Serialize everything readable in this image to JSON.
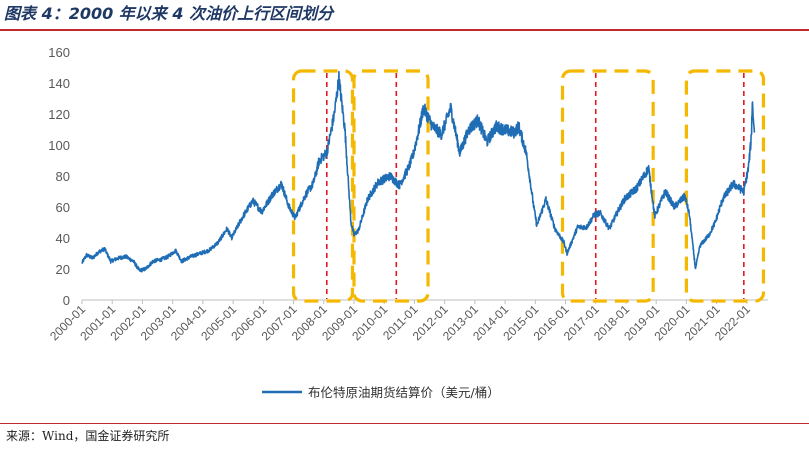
{
  "figure": {
    "title": "图表 4：2000 年以来 4 次油价上行区间划分",
    "source": "来源：Wind，国金证券研究所"
  },
  "chart_data": {
    "type": "line",
    "title": "",
    "xlabel": "",
    "ylabel": "",
    "ylim": [
      0,
      160
    ],
    "yticks": [
      0,
      20,
      40,
      60,
      80,
      100,
      120,
      140,
      160
    ],
    "xlim": [
      2000.0,
      2022.7
    ],
    "xticks": [
      "2000-01",
      "2001-01",
      "2002-01",
      "2003-01",
      "2004-01",
      "2005-01",
      "2006-01",
      "2007-01",
      "2008-01",
      "2009-01",
      "2010-01",
      "2011-01",
      "2012-01",
      "2013-01",
      "2014-01",
      "2015-01",
      "2016-01",
      "2017-01",
      "2018-01",
      "2019-01",
      "2020-01",
      "2021-01",
      "2022-01"
    ],
    "grid": false,
    "legend_position": "bottom",
    "series": [
      {
        "name": "布伦特原油期货结算价（美元/桶）",
        "color": "#1f6db5",
        "points": [
          [
            2000.0,
            24
          ],
          [
            2000.15,
            29
          ],
          [
            2000.35,
            27
          ],
          [
            2000.55,
            31
          ],
          [
            2000.75,
            33
          ],
          [
            2000.95,
            25
          ],
          [
            2001.2,
            27
          ],
          [
            2001.45,
            28
          ],
          [
            2001.7,
            25
          ],
          [
            2001.9,
            19
          ],
          [
            2002.1,
            20
          ],
          [
            2002.35,
            25
          ],
          [
            2002.6,
            26
          ],
          [
            2002.85,
            28
          ],
          [
            2003.1,
            32
          ],
          [
            2003.3,
            25
          ],
          [
            2003.6,
            28
          ],
          [
            2003.9,
            30
          ],
          [
            2004.2,
            32
          ],
          [
            2004.5,
            37
          ],
          [
            2004.8,
            46
          ],
          [
            2004.95,
            40
          ],
          [
            2005.3,
            53
          ],
          [
            2005.65,
            64
          ],
          [
            2005.95,
            57
          ],
          [
            2006.3,
            68
          ],
          [
            2006.6,
            75
          ],
          [
            2006.85,
            60
          ],
          [
            2007.05,
            53
          ],
          [
            2007.4,
            68
          ],
          [
            2007.65,
            75
          ],
          [
            2007.85,
            90
          ],
          [
            2008.1,
            95
          ],
          [
            2008.35,
            120
          ],
          [
            2008.5,
            143
          ],
          [
            2008.7,
            110
          ],
          [
            2008.9,
            50
          ],
          [
            2009.0,
            42
          ],
          [
            2009.15,
            45
          ],
          [
            2009.45,
            65
          ],
          [
            2009.8,
            76
          ],
          [
            2010.2,
            80
          ],
          [
            2010.5,
            74
          ],
          [
            2010.8,
            85
          ],
          [
            2010.95,
            93
          ],
          [
            2011.15,
            110
          ],
          [
            2011.3,
            124
          ],
          [
            2011.6,
            112
          ],
          [
            2011.9,
            107
          ],
          [
            2012.2,
            124
          ],
          [
            2012.5,
            95
          ],
          [
            2012.8,
            110
          ],
          [
            2013.1,
            116
          ],
          [
            2013.4,
            102
          ],
          [
            2013.7,
            112
          ],
          [
            2013.95,
            110
          ],
          [
            2014.3,
            108
          ],
          [
            2014.45,
            112
          ],
          [
            2014.7,
            95
          ],
          [
            2014.95,
            60
          ],
          [
            2015.05,
            48
          ],
          [
            2015.35,
            65
          ],
          [
            2015.65,
            46
          ],
          [
            2015.95,
            37
          ],
          [
            2016.05,
            30
          ],
          [
            2016.4,
            47
          ],
          [
            2016.7,
            47
          ],
          [
            2016.95,
            55
          ],
          [
            2017.15,
            56
          ],
          [
            2017.45,
            46
          ],
          [
            2017.75,
            58
          ],
          [
            2017.95,
            65
          ],
          [
            2018.35,
            72
          ],
          [
            2018.75,
            85
          ],
          [
            2018.95,
            54
          ],
          [
            2019.3,
            70
          ],
          [
            2019.6,
            60
          ],
          [
            2019.95,
            67
          ],
          [
            2020.1,
            55
          ],
          [
            2020.3,
            20
          ],
          [
            2020.45,
            35
          ],
          [
            2020.75,
            42
          ],
          [
            2020.95,
            50
          ],
          [
            2021.2,
            65
          ],
          [
            2021.55,
            75
          ],
          [
            2021.9,
            70
          ],
          [
            2022.05,
            85
          ],
          [
            2022.15,
            105
          ],
          [
            2022.18,
            128
          ],
          [
            2022.25,
            108
          ]
        ]
      }
    ],
    "upcycle_boxes": [
      {
        "start": 2007.0,
        "end": 2008.95,
        "peak": 2008.1
      },
      {
        "start": 2009.0,
        "end": 2011.45,
        "peak": 2010.4
      },
      {
        "start": 2015.9,
        "end": 2018.9,
        "peak": 2017.0
      },
      {
        "start": 2020.0,
        "end": 2022.55,
        "peak": 2021.9
      }
    ],
    "box_color": "#f5b800",
    "marker_color": "#e0191f"
  }
}
